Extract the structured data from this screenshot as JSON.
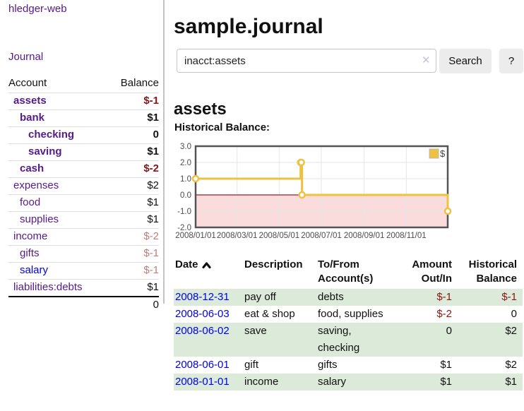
{
  "sidebar": {
    "app_title": "hledger-web",
    "journal_label": "Journal",
    "accounts_table": {
      "account_header": "Account",
      "balance_header": "Balance",
      "rows": [
        {
          "label": "assets",
          "indent": 1,
          "bold": true,
          "link_color": "purple",
          "value": "$-1",
          "value_style": "negstrong",
          "value_bold": true
        },
        {
          "label": "bank",
          "indent": 2,
          "bold": true,
          "link_color": "purple",
          "value": "$1",
          "value_style": "normal",
          "value_bold": true
        },
        {
          "label": "checking",
          "indent": 3,
          "bold": true,
          "link_color": "purple",
          "value": "0",
          "value_style": "normal",
          "value_bold": true
        },
        {
          "label": "saving",
          "indent": 3,
          "bold": true,
          "link_color": "purple",
          "value": "$1",
          "value_style": "normal",
          "value_bold": true
        },
        {
          "label": "cash",
          "indent": 2,
          "bold": true,
          "link_color": "purple",
          "value": "$-2",
          "value_style": "negstrong",
          "value_bold": true
        },
        {
          "label": "expenses",
          "indent": 1,
          "bold": false,
          "link_color": "purple",
          "value": "$2",
          "value_style": "normal",
          "value_bold": false
        },
        {
          "label": "food",
          "indent": 2,
          "bold": false,
          "link_color": "purple",
          "value": "$1",
          "value_style": "normal",
          "value_bold": false
        },
        {
          "label": "supplies",
          "indent": 2,
          "bold": false,
          "link_color": "purple",
          "value": "$1",
          "value_style": "normal",
          "value_bold": false
        },
        {
          "label": "income",
          "indent": 1,
          "bold": false,
          "link_color": "purple",
          "value": "$-2",
          "value_style": "negsoft",
          "value_bold": false
        },
        {
          "label": "gifts",
          "indent": 2,
          "bold": false,
          "link_color": "purple",
          "value": "$-1",
          "value_style": "negsoft",
          "value_bold": false
        },
        {
          "label": "salary",
          "indent": 2,
          "bold": false,
          "link_color": "blue",
          "value": "$-1",
          "value_style": "negsoft",
          "value_bold": false
        },
        {
          "label": "liabilities:debts",
          "indent": 1,
          "bold": false,
          "link_color": "purple",
          "value": "$1",
          "value_style": "normal",
          "value_bold": false
        }
      ],
      "total": "0"
    }
  },
  "header": {
    "title": "sample.journal"
  },
  "search": {
    "value": "inacct:assets",
    "clear_icon": "✕",
    "button_label": "Search",
    "help_label": "?"
  },
  "account_page": {
    "title": "assets",
    "chart_label": "Historical Balance:"
  },
  "chart_data": {
    "type": "line",
    "step": true,
    "title": "Historical Balance",
    "series": [
      {
        "name": "$",
        "color": "#edc240",
        "points": [
          [
            "2008/01/01",
            1.0
          ],
          [
            "2008/06/01",
            2.0
          ],
          [
            "2008/06/02",
            2.0
          ],
          [
            "2008/06/03",
            0.0
          ],
          [
            "2008/12/31",
            -1.0
          ]
        ]
      }
    ],
    "x_domain": [
      "2008/01/01",
      "2008/12/31"
    ],
    "x_ticks": [
      "2008/01/01",
      "2008/03/01",
      "2008/05/01",
      "2008/07/01",
      "2008/09/01",
      "2008/11/01"
    ],
    "y_ticks": [
      "3.0",
      "2.0",
      "1.0",
      "0.0",
      "-1.0",
      "-2.0"
    ],
    "ylim": [
      -2.0,
      3.0
    ],
    "grid": true,
    "legend": {
      "label": "$",
      "position": "top-right"
    },
    "negative_region_color": "#fbdcdc",
    "zero_line_color": "#9b1c1c",
    "grid_color": "#e6e6e6",
    "border_color": "#545454"
  },
  "register_table": {
    "headers": {
      "date": "Date",
      "description": "Description",
      "accounts": "To/From Account(s)",
      "amount": "Amount Out/In",
      "balance": "Historical Balance"
    },
    "rows": [
      {
        "date": "2008-12-31",
        "description": "pay off",
        "accounts": "debts",
        "amount": "$-1",
        "amount_neg": true,
        "balance": "$-1",
        "balance_neg": true
      },
      {
        "date": "2008-06-03",
        "description": "eat & shop",
        "accounts": "food, supplies",
        "amount": "$-2",
        "amount_neg": true,
        "balance": "0",
        "balance_neg": false
      },
      {
        "date": "2008-06-02",
        "description": "save",
        "accounts": "saving, checking",
        "amount": "0",
        "amount_neg": false,
        "balance": "$2",
        "balance_neg": false
      },
      {
        "date": "2008-06-01",
        "description": "gift",
        "accounts": "gifts",
        "amount": "$1",
        "amount_neg": false,
        "balance": "$2",
        "balance_neg": false
      },
      {
        "date": "2008-01-01",
        "description": "income",
        "accounts": "salary",
        "amount": "$1",
        "amount_neg": false,
        "balance": "$1",
        "balance_neg": false
      }
    ]
  },
  "colors": {
    "link_purple": "#551a8b",
    "link_blue": "#0000ee",
    "negative_strong": "#8b1515",
    "negative_soft": "#bf7e7e",
    "row_stripe_green": "#dcead9",
    "series_yellow": "#edc240"
  }
}
